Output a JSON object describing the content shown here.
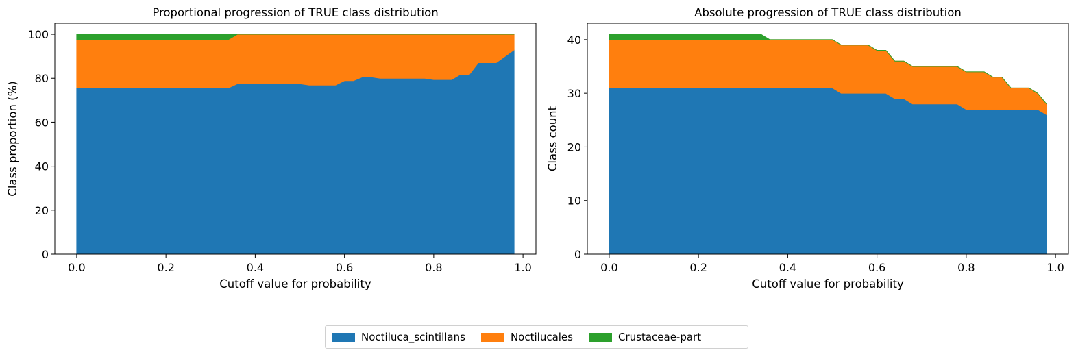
{
  "chart_data": [
    {
      "type": "area",
      "stacked": true,
      "title": "Proportional progression of TRUE class distribution",
      "xlabel": "Cutoff value for probability",
      "ylabel": "Class proportion (%)",
      "xlim": [
        -0.049,
        1.029
      ],
      "ylim": [
        0,
        105
      ],
      "xticks": [
        0.0,
        0.2,
        0.4,
        0.6,
        0.8,
        1.0
      ],
      "xtick_labels": [
        "0.0",
        "0.2",
        "0.4",
        "0.6",
        "0.8",
        "1.0"
      ],
      "yticks": [
        0,
        20,
        40,
        60,
        80,
        100
      ],
      "ytick_labels": [
        "0",
        "20",
        "40",
        "60",
        "80",
        "100"
      ],
      "grid": false,
      "x": [
        0.0,
        0.02,
        0.04,
        0.06,
        0.08,
        0.1,
        0.12,
        0.14,
        0.16,
        0.18,
        0.2,
        0.22,
        0.24,
        0.26,
        0.28,
        0.3,
        0.32,
        0.34,
        0.36,
        0.38,
        0.4,
        0.42,
        0.44,
        0.46,
        0.48,
        0.5,
        0.52,
        0.54,
        0.56,
        0.58,
        0.6,
        0.62,
        0.64,
        0.66,
        0.68,
        0.7,
        0.72,
        0.74,
        0.76,
        0.78,
        0.8,
        0.82,
        0.84,
        0.86,
        0.88,
        0.9,
        0.92,
        0.94,
        0.96,
        0.98
      ],
      "series": [
        {
          "name": "Noctiluca_scintillans",
          "color": "#1f77b4",
          "values": [
            75.6,
            75.6,
            75.6,
            75.6,
            75.6,
            75.6,
            75.6,
            75.6,
            75.6,
            75.6,
            75.6,
            75.6,
            75.6,
            75.6,
            75.6,
            75.6,
            75.6,
            75.6,
            77.5,
            77.5,
            77.5,
            77.5,
            77.5,
            77.5,
            77.5,
            77.5,
            76.9,
            76.9,
            76.9,
            76.9,
            78.9,
            78.9,
            80.6,
            80.6,
            80.0,
            80.0,
            80.0,
            80.0,
            80.0,
            80.0,
            79.4,
            79.4,
            79.4,
            81.8,
            81.8,
            87.1,
            87.1,
            87.1,
            90.0,
            92.9
          ]
        },
        {
          "name": "Noctilucales",
          "color": "#ff7f0e",
          "values": [
            22.0,
            22.0,
            22.0,
            22.0,
            22.0,
            22.0,
            22.0,
            22.0,
            22.0,
            22.0,
            22.0,
            22.0,
            22.0,
            22.0,
            22.0,
            22.0,
            22.0,
            22.0,
            22.5,
            22.5,
            22.5,
            22.5,
            22.5,
            22.5,
            22.5,
            22.5,
            23.1,
            23.1,
            23.1,
            23.1,
            21.1,
            21.1,
            19.4,
            19.4,
            20.0,
            20.0,
            20.0,
            20.0,
            20.0,
            20.0,
            20.6,
            20.6,
            20.6,
            18.2,
            18.2,
            12.9,
            12.9,
            12.9,
            10.0,
            7.1
          ]
        },
        {
          "name": "Crustaceae-part",
          "color": "#2ca02c",
          "values": [
            2.4,
            2.4,
            2.4,
            2.4,
            2.4,
            2.4,
            2.4,
            2.4,
            2.4,
            2.4,
            2.4,
            2.4,
            2.4,
            2.4,
            2.4,
            2.4,
            2.4,
            2.4,
            0,
            0,
            0,
            0,
            0,
            0,
            0,
            0,
            0,
            0,
            0,
            0,
            0,
            0,
            0,
            0,
            0,
            0,
            0,
            0,
            0,
            0,
            0,
            0,
            0,
            0,
            0,
            0,
            0,
            0,
            0,
            0
          ]
        }
      ]
    },
    {
      "type": "area",
      "stacked": true,
      "title": "Absolute progression of TRUE class distribution",
      "xlabel": "Cutoff value for probability",
      "ylabel": "Class count",
      "xlim": [
        -0.049,
        1.029
      ],
      "ylim": [
        0,
        43.05
      ],
      "xticks": [
        0.0,
        0.2,
        0.4,
        0.6,
        0.8,
        1.0
      ],
      "xtick_labels": [
        "0.0",
        "0.2",
        "0.4",
        "0.6",
        "0.8",
        "1.0"
      ],
      "yticks": [
        0,
        10,
        20,
        30,
        40
      ],
      "ytick_labels": [
        "0",
        "10",
        "20",
        "30",
        "40"
      ],
      "grid": false,
      "x": [
        0.0,
        0.02,
        0.04,
        0.06,
        0.08,
        0.1,
        0.12,
        0.14,
        0.16,
        0.18,
        0.2,
        0.22,
        0.24,
        0.26,
        0.28,
        0.3,
        0.32,
        0.34,
        0.36,
        0.38,
        0.4,
        0.42,
        0.44,
        0.46,
        0.48,
        0.5,
        0.52,
        0.54,
        0.56,
        0.58,
        0.6,
        0.62,
        0.64,
        0.66,
        0.68,
        0.7,
        0.72,
        0.74,
        0.76,
        0.78,
        0.8,
        0.82,
        0.84,
        0.86,
        0.88,
        0.9,
        0.92,
        0.94,
        0.96,
        0.98
      ],
      "series": [
        {
          "name": "Noctiluca_scintillans",
          "color": "#1f77b4",
          "values": [
            31,
            31,
            31,
            31,
            31,
            31,
            31,
            31,
            31,
            31,
            31,
            31,
            31,
            31,
            31,
            31,
            31,
            31,
            31,
            31,
            31,
            31,
            31,
            31,
            31,
            31,
            30,
            30,
            30,
            30,
            30,
            30,
            29,
            29,
            28,
            28,
            28,
            28,
            28,
            28,
            27,
            27,
            27,
            27,
            27,
            27,
            27,
            27,
            27,
            26
          ]
        },
        {
          "name": "Noctilucales",
          "color": "#ff7f0e",
          "values": [
            9,
            9,
            9,
            9,
            9,
            9,
            9,
            9,
            9,
            9,
            9,
            9,
            9,
            9,
            9,
            9,
            9,
            9,
            9,
            9,
            9,
            9,
            9,
            9,
            9,
            9,
            9,
            9,
            9,
            9,
            8,
            8,
            7,
            7,
            7,
            7,
            7,
            7,
            7,
            7,
            7,
            7,
            7,
            6,
            6,
            4,
            4,
            4,
            3,
            2
          ]
        },
        {
          "name": "Crustaceae-part",
          "color": "#2ca02c",
          "values": [
            1,
            1,
            1,
            1,
            1,
            1,
            1,
            1,
            1,
            1,
            1,
            1,
            1,
            1,
            1,
            1,
            1,
            1,
            0,
            0,
            0,
            0,
            0,
            0,
            0,
            0,
            0,
            0,
            0,
            0,
            0,
            0,
            0,
            0,
            0,
            0,
            0,
            0,
            0,
            0,
            0,
            0,
            0,
            0,
            0,
            0,
            0,
            0,
            0,
            0
          ]
        }
      ]
    }
  ],
  "legend": {
    "placement": "bottom-center",
    "items": [
      {
        "label": "Noctiluca_scintillans",
        "color": "#1f77b4"
      },
      {
        "label": "Noctilucales",
        "color": "#ff7f0e"
      },
      {
        "label": "Crustaceae-part",
        "color": "#2ca02c"
      }
    ]
  }
}
